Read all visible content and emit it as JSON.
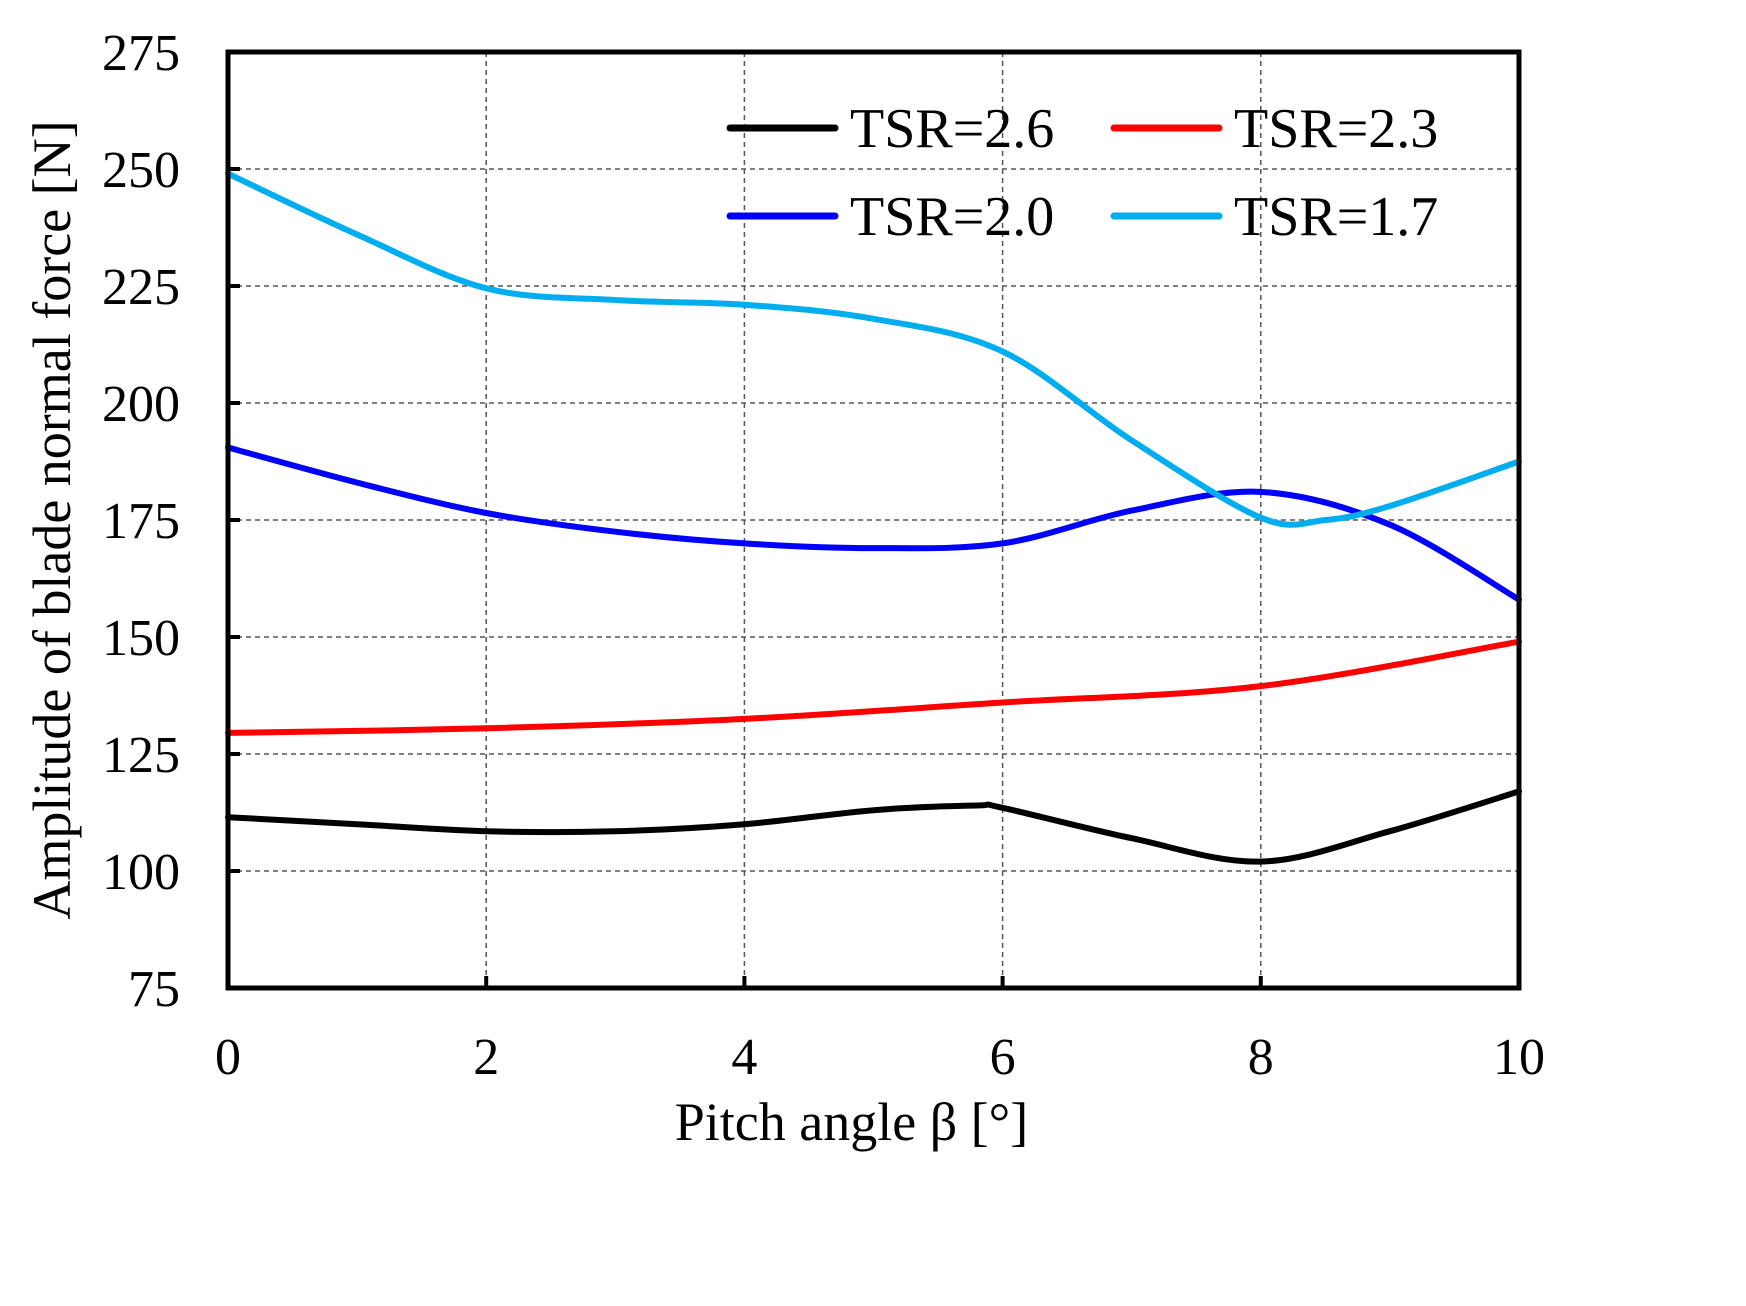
{
  "chart_data": {
    "type": "line",
    "title": "",
    "xlabel": "Pitch angle β [°]",
    "ylabel": "Amplitude of blade normal force [N]",
    "xlim": [
      0,
      10
    ],
    "ylim": [
      75,
      275
    ],
    "xticks": [
      0,
      2,
      4,
      6,
      8,
      10
    ],
    "yticks": [
      75,
      100,
      125,
      150,
      175,
      200,
      225,
      250,
      275
    ],
    "grid": true,
    "legend_position": "top-right",
    "series": [
      {
        "name": "TSR=2.6",
        "color": "#000000",
        "x": [
          0,
          1,
          2,
          3,
          4,
          5,
          5.8,
          6,
          7,
          8,
          9,
          10
        ],
        "y": [
          111.5,
          110,
          108.5,
          108.5,
          110,
          113,
          114,
          113.5,
          107,
          102,
          108.5,
          117
        ]
      },
      {
        "name": "TSR=2.3",
        "color": "#ff0000",
        "x": [
          0,
          2,
          4,
          6,
          8,
          10
        ],
        "y": [
          129.5,
          130.5,
          132.5,
          136,
          139.5,
          149
        ]
      },
      {
        "name": "TSR=2.0",
        "color": "#0000ff",
        "x": [
          0,
          1,
          2,
          3,
          4,
          5,
          6,
          7,
          8,
          9,
          10
        ],
        "y": [
          190.5,
          183,
          176.5,
          172.5,
          170,
          169,
          170,
          177,
          181,
          174,
          158
        ]
      },
      {
        "name": "TSR=1.7",
        "color": "#00aeef",
        "x": [
          0,
          1,
          2,
          3,
          4,
          5,
          6,
          7,
          8,
          8.5,
          9,
          10
        ],
        "y": [
          249,
          236,
          224.5,
          222,
          221,
          218,
          211,
          192,
          175.5,
          175,
          178,
          187.5
        ]
      }
    ]
  }
}
